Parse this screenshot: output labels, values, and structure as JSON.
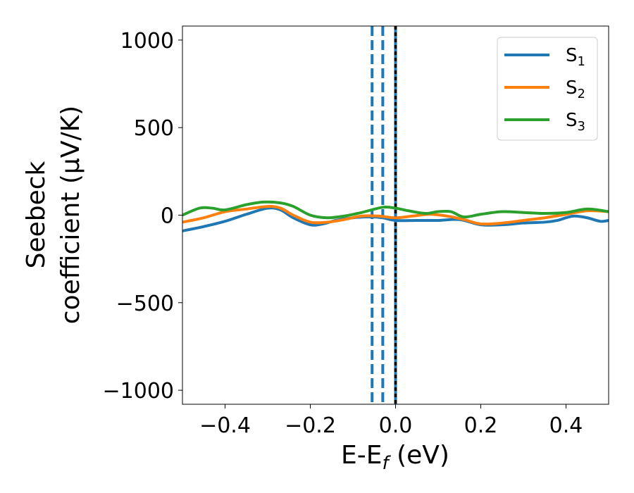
{
  "chart_data": {
    "type": "line",
    "xlabel": "E-E",
    "xlabel_sub": "f",
    "xlabel_unit": " (eV)",
    "ylabel_line1": "Seebeck",
    "ylabel_line2": "coefficient  (μV/K)",
    "xlim": [
      -0.5,
      0.5
    ],
    "ylim": [
      -1080,
      1080
    ],
    "xticks": [
      -0.4,
      -0.2,
      0.0,
      0.2,
      0.4
    ],
    "xtick_labels": [
      "−0.4",
      "−0.2",
      "0.0",
      "0.2",
      "0.4"
    ],
    "yticks": [
      1000,
      500,
      0,
      -500,
      -1000
    ],
    "ytick_labels": [
      "1000",
      "500",
      "0",
      "−500",
      "−1000"
    ],
    "legend_position": "upper right",
    "series": [
      {
        "name": "S",
        "sub": "1",
        "color": "#1f77b4",
        "x": [
          -0.5,
          -0.45,
          -0.4,
          -0.35,
          -0.3,
          -0.27,
          -0.24,
          -0.2,
          -0.17,
          -0.14,
          -0.1,
          -0.06,
          -0.03,
          0.0,
          0.05,
          0.1,
          0.15,
          0.2,
          0.25,
          0.3,
          0.35,
          0.38,
          0.4,
          0.42,
          0.45,
          0.48,
          0.5
        ],
        "y": [
          -90,
          -65,
          -35,
          5,
          40,
          30,
          -15,
          -55,
          -50,
          -30,
          -15,
          -10,
          -15,
          -30,
          -30,
          -30,
          -25,
          -55,
          -55,
          -45,
          -40,
          -30,
          -15,
          -5,
          -15,
          -35,
          -30
        ]
      },
      {
        "name": "S",
        "sub": "2",
        "color": "#ff7f0e",
        "x": [
          -0.5,
          -0.45,
          -0.4,
          -0.35,
          -0.3,
          -0.27,
          -0.24,
          -0.2,
          -0.16,
          -0.12,
          -0.08,
          -0.04,
          0.0,
          0.04,
          0.08,
          0.12,
          0.16,
          0.2,
          0.25,
          0.3,
          0.35,
          0.4,
          0.45,
          0.5
        ],
        "y": [
          -40,
          -15,
          20,
          35,
          50,
          40,
          0,
          -40,
          -40,
          -25,
          -5,
          -5,
          -15,
          -5,
          5,
          -5,
          -25,
          -50,
          -45,
          -30,
          -15,
          5,
          25,
          20
        ]
      },
      {
        "name": "S",
        "sub": "3",
        "color": "#2ca02c",
        "x": [
          -0.5,
          -0.46,
          -0.43,
          -0.4,
          -0.35,
          -0.31,
          -0.27,
          -0.24,
          -0.2,
          -0.16,
          -0.12,
          -0.08,
          -0.03,
          0.0,
          0.03,
          0.07,
          0.1,
          0.13,
          0.16,
          0.2,
          0.25,
          0.3,
          0.35,
          0.4,
          0.45,
          0.5
        ],
        "y": [
          0,
          40,
          40,
          30,
          60,
          75,
          70,
          50,
          0,
          -15,
          -5,
          15,
          45,
          40,
          25,
          10,
          20,
          20,
          -10,
          5,
          20,
          15,
          10,
          15,
          35,
          20
        ]
      }
    ],
    "vlines": [
      {
        "x": -0.055,
        "color": "#1f77b4",
        "style": "dashed"
      },
      {
        "x": -0.03,
        "color": "#1f77b4",
        "style": "dashed"
      },
      {
        "x": 0.0,
        "color": "#1f77b4",
        "style": "solid"
      },
      {
        "x": 0.0,
        "color": "#000000",
        "style": "dotted"
      }
    ]
  }
}
